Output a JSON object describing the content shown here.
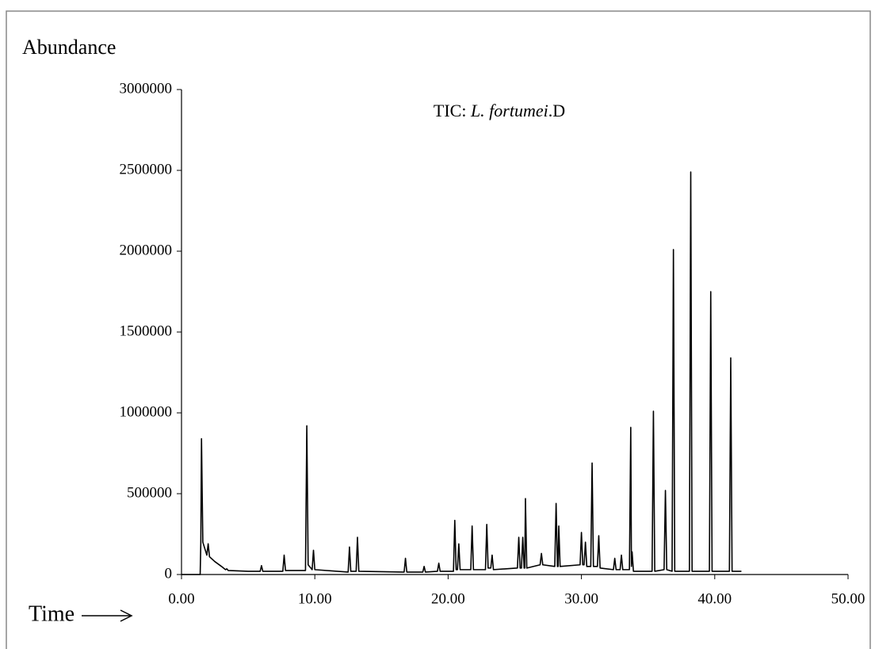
{
  "chart_data": {
    "type": "line",
    "y_label": "Abundance",
    "x_label": "Time",
    "annotation": [
      "TIC: ",
      "L. fortumei",
      ".D"
    ],
    "x": [
      0,
      1.4,
      1.45,
      1.5,
      1.6,
      1.9,
      2.0,
      2.1,
      2.5,
      3.0,
      3.3,
      3.4,
      3.5,
      5.0,
      5.9,
      6.0,
      6.1,
      7.6,
      7.7,
      7.8,
      9.3,
      9.4,
      9.5,
      9.8,
      9.9,
      10.0,
      12.5,
      12.6,
      12.7,
      13.1,
      13.2,
      13.3,
      16.7,
      16.8,
      16.9,
      18.1,
      18.2,
      18.3,
      19.2,
      19.3,
      19.4,
      20.4,
      20.5,
      20.6,
      20.7,
      20.8,
      20.9,
      21.7,
      21.8,
      21.9,
      22.8,
      22.9,
      23.0,
      23.2,
      23.3,
      23.4,
      25.2,
      25.3,
      25.4,
      25.5,
      25.6,
      25.7,
      25.75,
      25.8,
      25.9,
      26.9,
      27.0,
      27.1,
      28.0,
      28.1,
      28.2,
      28.25,
      28.3,
      28.4,
      29.9,
      30.0,
      30.1,
      30.2,
      30.3,
      30.4,
      30.7,
      30.8,
      30.9,
      31.2,
      31.3,
      31.4,
      32.4,
      32.5,
      32.6,
      32.9,
      33.0,
      33.1,
      33.6,
      33.7,
      33.75,
      33.8,
      33.9,
      35.3,
      35.4,
      35.5,
      36.2,
      36.3,
      36.4,
      36.8,
      36.9,
      37.0,
      38.1,
      38.2,
      38.3,
      39.6,
      39.7,
      39.8,
      41.1,
      41.2,
      41.3,
      42.0
    ],
    "series": [
      {
        "color": "#000000",
        "values": [
          0,
          0,
          200000,
          840000,
          200000,
          120000,
          190000,
          110000,
          80000,
          50000,
          30000,
          35000,
          25000,
          20000,
          20000,
          55000,
          20000,
          20000,
          120000,
          25000,
          25000,
          920000,
          60000,
          30000,
          150000,
          30000,
          15000,
          170000,
          20000,
          20000,
          230000,
          20000,
          15000,
          100000,
          15000,
          15000,
          50000,
          15000,
          20000,
          70000,
          20000,
          20000,
          335000,
          30000,
          30000,
          190000,
          30000,
          30000,
          300000,
          30000,
          30000,
          310000,
          40000,
          40000,
          120000,
          30000,
          40000,
          230000,
          40000,
          40000,
          230000,
          40000,
          40000,
          470000,
          40000,
          60000,
          130000,
          60000,
          50000,
          440000,
          50000,
          50000,
          300000,
          50000,
          60000,
          260000,
          60000,
          60000,
          200000,
          50000,
          50000,
          690000,
          50000,
          50000,
          240000,
          40000,
          30000,
          100000,
          30000,
          30000,
          120000,
          30000,
          30000,
          910000,
          50000,
          140000,
          20000,
          20000,
          1010000,
          20000,
          30000,
          520000,
          30000,
          20000,
          2010000,
          20000,
          20000,
          2490000,
          20000,
          20000,
          1750000,
          20000,
          20000,
          1340000,
          20000,
          20000
        ]
      }
    ],
    "xlim": [
      0,
      50
    ],
    "xticks": [
      {
        "value": 0,
        "label": "0.00"
      },
      {
        "value": 10,
        "label": "10.00"
      },
      {
        "value": 20,
        "label": "20.00"
      },
      {
        "value": 30,
        "label": "30.00"
      },
      {
        "value": 40,
        "label": "40.00"
      },
      {
        "value": 50,
        "label": "50.00"
      }
    ],
    "ylim": [
      0,
      3000000
    ],
    "yticks": [
      0,
      500000,
      1000000,
      1500000,
      2000000,
      2500000,
      3000000
    ]
  }
}
